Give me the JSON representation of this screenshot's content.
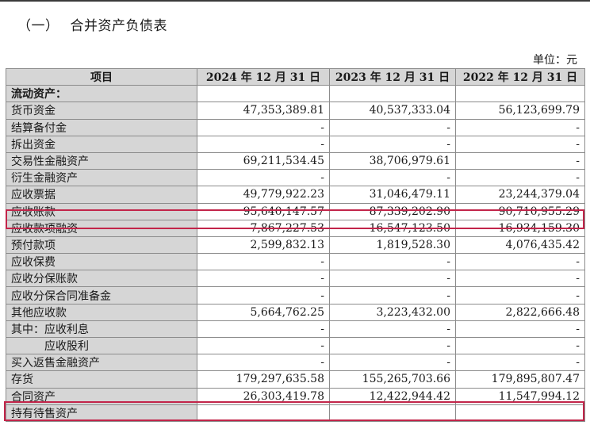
{
  "title_num": "（一）",
  "title": "合并资产负债表",
  "unit": "单位：元",
  "headers": [
    "项目",
    "2024 年 12 月 31 日",
    "2023 年 12 月 31 日",
    "2022 年 12 月 31 日"
  ],
  "rows": [
    {
      "label": "流动资产：",
      "v2024": "",
      "v2023": "",
      "v2022": ""
    },
    {
      "label": "货币资金",
      "v2024": "47,353,389.81",
      "v2023": "40,537,333.04",
      "v2022": "56,123,699.79"
    },
    {
      "label": "结算备付金",
      "v2024": "-",
      "v2023": "-",
      "v2022": "-"
    },
    {
      "label": "拆出资金",
      "v2024": "-",
      "v2023": "-",
      "v2022": "-"
    },
    {
      "label": "交易性金融资产",
      "v2024": "69,211,534.45",
      "v2023": "38,706,979.61",
      "v2022": "-"
    },
    {
      "label": "衍生金融资产",
      "v2024": "-",
      "v2023": "-",
      "v2022": "-"
    },
    {
      "label": "应收票据",
      "v2024": "49,779,922.23",
      "v2023": "31,046,479.11",
      "v2022": "23,244,379.04"
    },
    {
      "label": "应收账款",
      "v2024": "95,640,147.57",
      "v2023": "87,339,202.90",
      "v2022": "90,710,955.29"
    },
    {
      "label": "应收款项融资",
      "v2024": "7,867,227.53",
      "v2023": "16,547,123.50",
      "v2022": "16,934,159.30"
    },
    {
      "label": "预付款项",
      "v2024": "2,599,832.13",
      "v2023": "1,819,528.30",
      "v2022": "4,076,435.42"
    },
    {
      "label": "应收保费",
      "v2024": "-",
      "v2023": "-",
      "v2022": "-"
    },
    {
      "label": "应收分保账款",
      "v2024": "-",
      "v2023": "-",
      "v2022": "-"
    },
    {
      "label": "应收分保合同准备金",
      "v2024": "-",
      "v2023": "-",
      "v2022": "-"
    },
    {
      "label": "其他应收款",
      "v2024": "5,664,762.25",
      "v2023": "3,223,432.00",
      "v2022": "2,822,666.48"
    },
    {
      "label": "其中：应收利息",
      "v2024": "-",
      "v2023": "-",
      "v2022": "-"
    },
    {
      "label": "应收股利",
      "v2024": "-",
      "v2023": "-",
      "v2022": "-"
    },
    {
      "label": "买入返售金融资产",
      "v2024": "-",
      "v2023": "-",
      "v2022": "-"
    },
    {
      "label": "存货",
      "v2024": "179,297,635.58",
      "v2023": "155,265,703.66",
      "v2022": "179,895,807.47"
    },
    {
      "label": "合同资产",
      "v2024": "26,303,419.78",
      "v2023": "12,422,944.42",
      "v2022": "11,547,994.12"
    },
    {
      "label": "持有待售资产",
      "v2024": "",
      "v2023": "",
      "v2022": ""
    }
  ],
  "highlight_color": "#c2254a"
}
